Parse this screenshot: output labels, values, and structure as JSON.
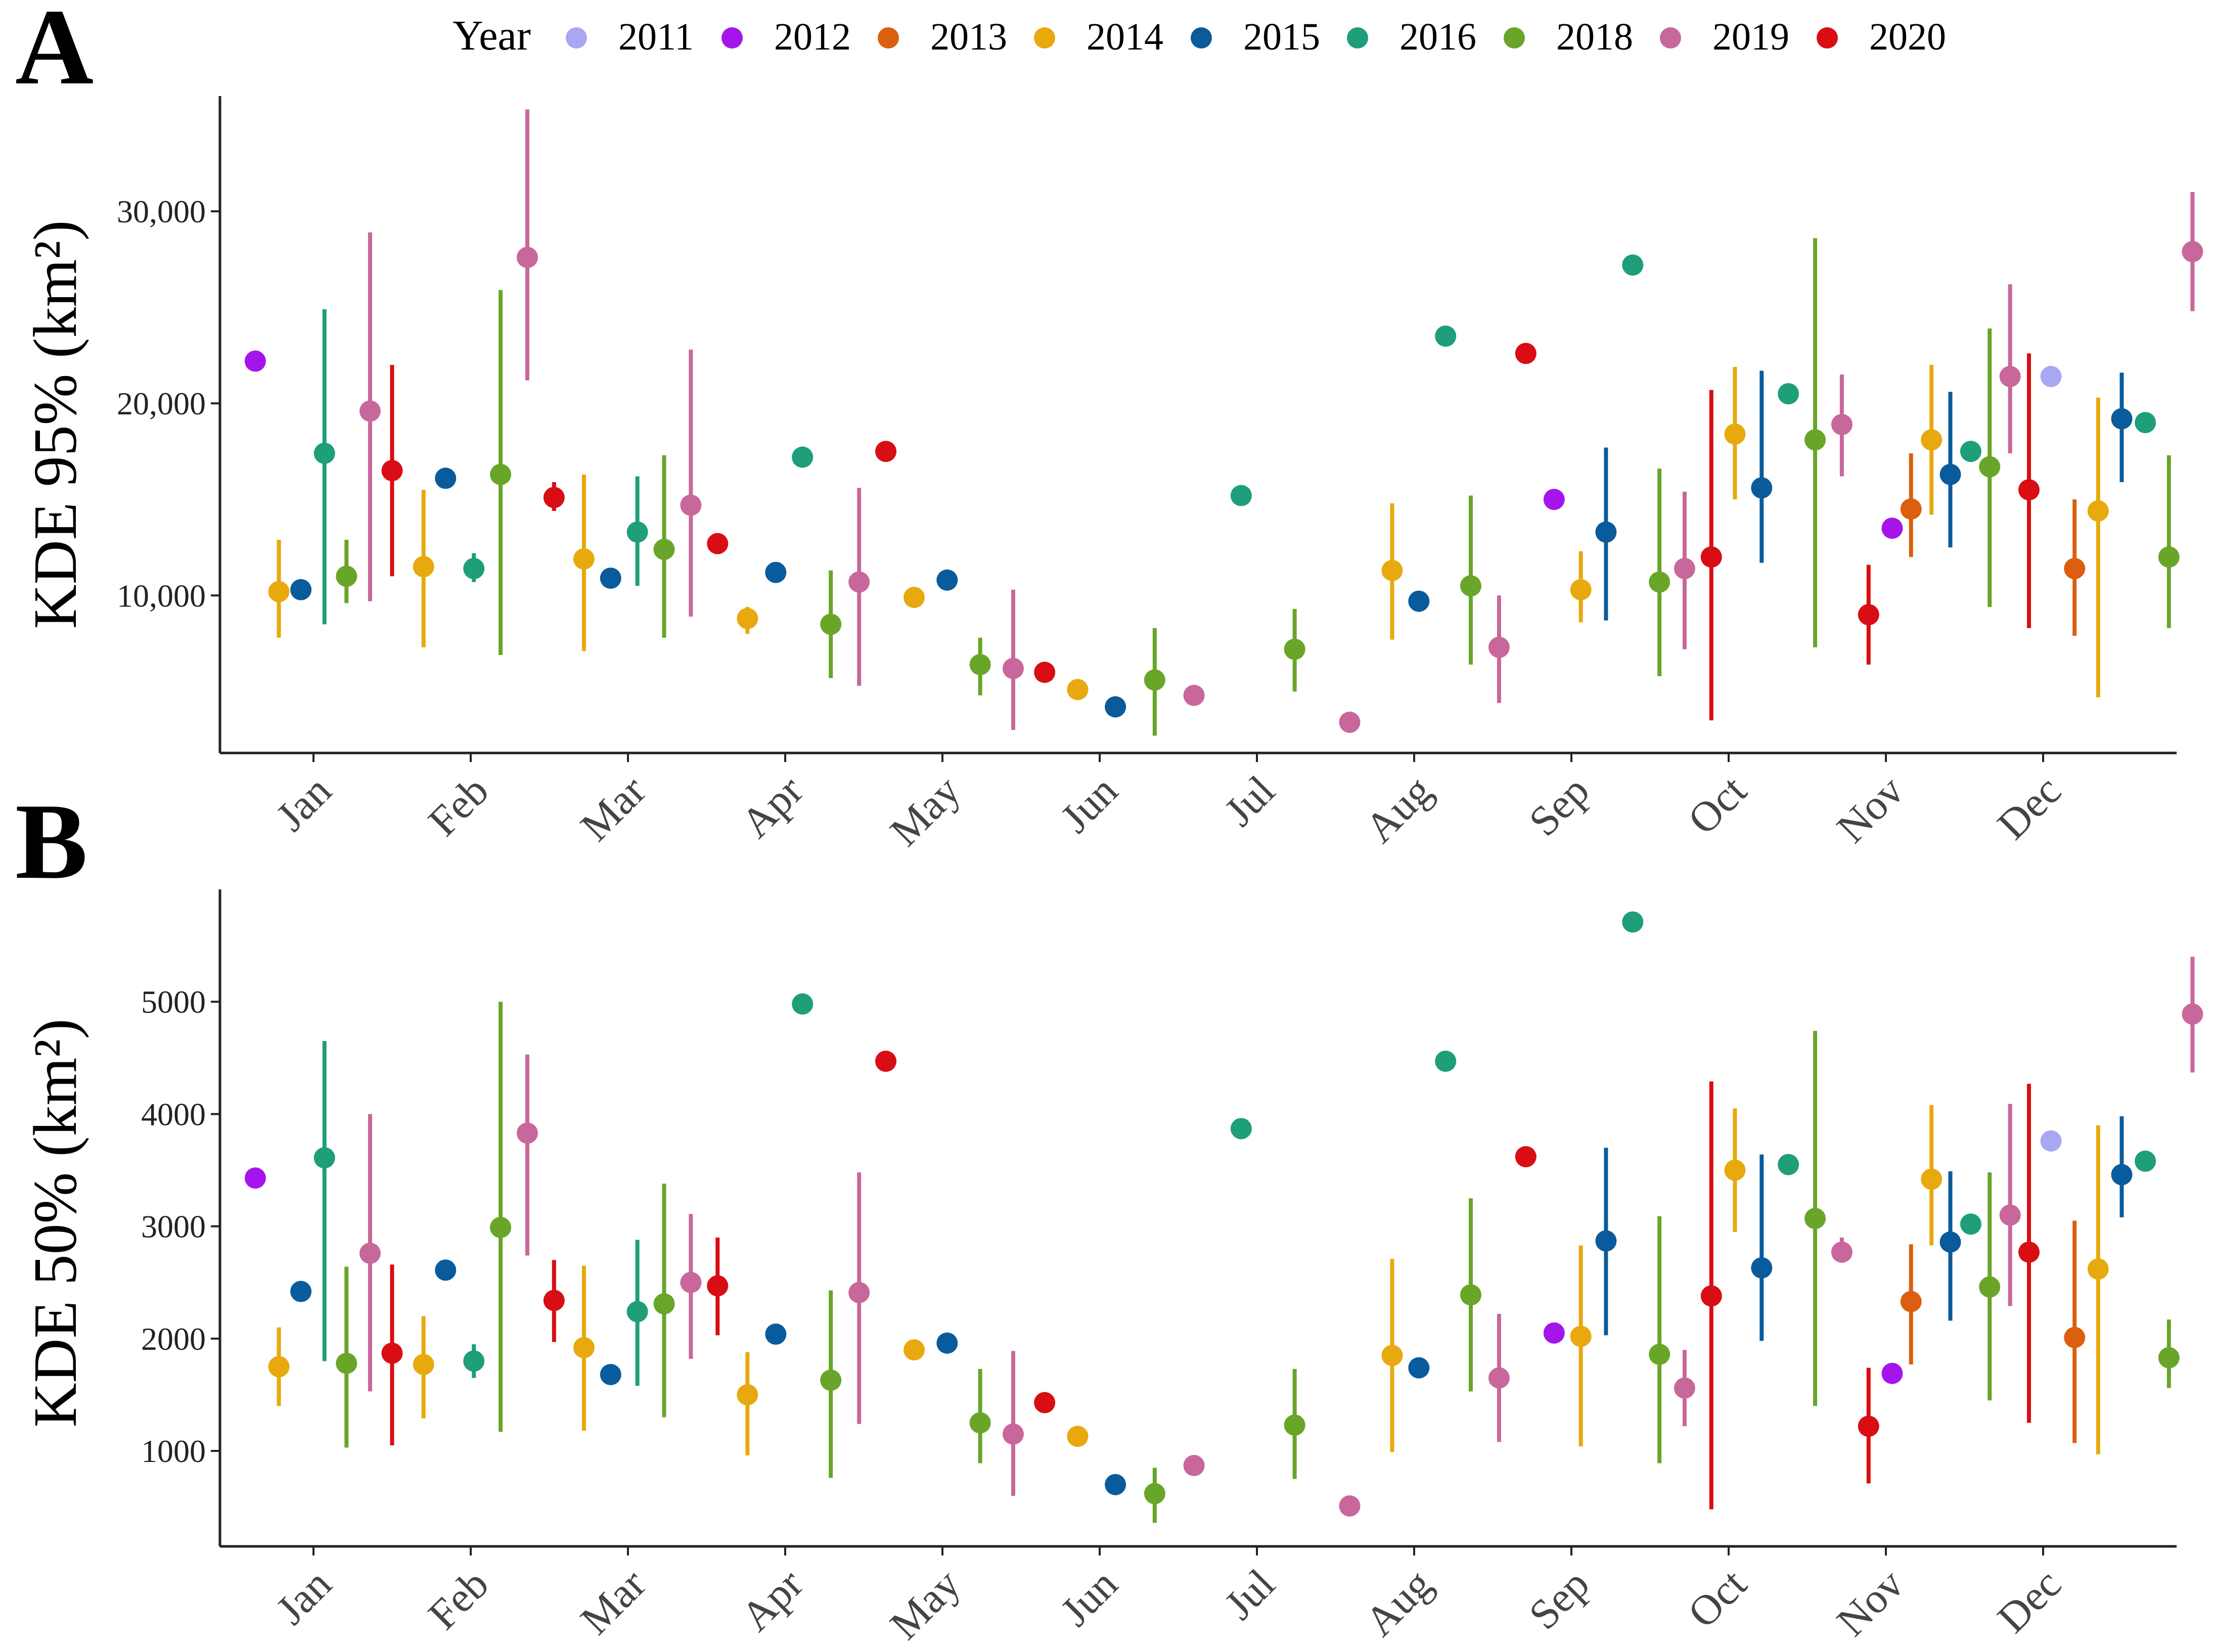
{
  "legend": {
    "title": "Year",
    "position": "top",
    "entries": [
      {
        "name": "2011",
        "color": "#A9A7F2"
      },
      {
        "name": "2012",
        "color": "#A515EB"
      },
      {
        "name": "2013",
        "color": "#DB5F0E"
      },
      {
        "name": "2014",
        "color": "#E8A90E"
      },
      {
        "name": "2015",
        "color": "#0A5B9C"
      },
      {
        "name": "2016",
        "color": "#1E9E79"
      },
      {
        "name": "2018",
        "color": "#68A529"
      },
      {
        "name": "2019",
        "color": "#C8679B"
      },
      {
        "name": "2020",
        "color": "#D80E14"
      }
    ]
  },
  "chart_data": [
    {
      "panel_label": "A",
      "type": "scatter",
      "subtype": "point-range",
      "ylabel": "KDE  95%  (km²)",
      "ylim": [
        1800,
        36000
      ],
      "yticks": [
        10000,
        20000,
        30000
      ],
      "ytick_labels": [
        "10,000",
        "20,000",
        "30,000"
      ],
      "xlim": [
        0.45,
        12.75
      ],
      "xticks": [
        1,
        2,
        3,
        4,
        5,
        6,
        7,
        8,
        9,
        10,
        11,
        12
      ],
      "xtick_labels": [
        "Jan",
        "Feb",
        "Mar",
        "Apr",
        "May",
        "Jun",
        "Jul",
        "Aug",
        "Sep",
        "Oct",
        "Nov",
        "Dec"
      ],
      "grid": false,
      "points": [
        {
          "x": 0.63,
          "year": "2012",
          "y": 22200
        },
        {
          "x": 0.78,
          "year": "2014",
          "y": 10200,
          "low": 7800,
          "high": 12900
        },
        {
          "x": 0.92,
          "year": "2015",
          "y": 10300
        },
        {
          "x": 1.07,
          "year": "2016",
          "y": 17400,
          "low": 8500,
          "high": 24900
        },
        {
          "x": 1.21,
          "year": "2018",
          "y": 11000,
          "low": 9600,
          "high": 12900
        },
        {
          "x": 1.36,
          "year": "2019",
          "y": 19600,
          "low": 9700,
          "high": 28900
        },
        {
          "x": 1.5,
          "year": "2020",
          "y": 16500,
          "low": 11000,
          "high": 22000
        },
        {
          "x": 1.7,
          "year": "2014",
          "y": 11500,
          "low": 7300,
          "high": 15500
        },
        {
          "x": 1.84,
          "year": "2015",
          "y": 16100
        },
        {
          "x": 2.02,
          "year": "2016",
          "y": 11400,
          "low": 10700,
          "high": 12200
        },
        {
          "x": 2.19,
          "year": "2018",
          "y": 16300,
          "low": 6900,
          "high": 25900
        },
        {
          "x": 2.36,
          "year": "2019",
          "y": 27600,
          "low": 21200,
          "high": 35300
        },
        {
          "x": 2.53,
          "year": "2020",
          "y": 15100,
          "low": 14400,
          "high": 15900
        },
        {
          "x": 2.72,
          "year": "2014",
          "y": 11900,
          "low": 7100,
          "high": 16300
        },
        {
          "x": 2.89,
          "year": "2015",
          "y": 10900
        },
        {
          "x": 3.06,
          "year": "2016",
          "y": 13300,
          "low": 10500,
          "high": 16200
        },
        {
          "x": 3.23,
          "year": "2018",
          "y": 12400,
          "low": 7800,
          "high": 17300
        },
        {
          "x": 3.4,
          "year": "2019",
          "y": 14700,
          "low": 8900,
          "high": 22800
        },
        {
          "x": 3.57,
          "year": "2020",
          "y": 12700
        },
        {
          "x": 3.76,
          "year": "2014",
          "y": 8800,
          "low": 8000,
          "high": 9400
        },
        {
          "x": 3.94,
          "year": "2015",
          "y": 11200
        },
        {
          "x": 4.11,
          "year": "2016",
          "y": 17200
        },
        {
          "x": 4.29,
          "year": "2018",
          "y": 8500,
          "low": 5700,
          "high": 11300
        },
        {
          "x": 4.47,
          "year": "2019",
          "y": 10700,
          "low": 5300,
          "high": 15600
        },
        {
          "x": 4.64,
          "year": "2020",
          "y": 17500
        },
        {
          "x": 4.82,
          "year": "2014",
          "y": 9900
        },
        {
          "x": 5.03,
          "year": "2015",
          "y": 10800
        },
        {
          "x": 5.24,
          "year": "2018",
          "y": 6400,
          "low": 4800,
          "high": 7800
        },
        {
          "x": 5.45,
          "year": "2019",
          "y": 6200,
          "low": 3000,
          "high": 10300
        },
        {
          "x": 5.65,
          "year": "2020",
          "y": 6000
        },
        {
          "x": 5.86,
          "year": "2014",
          "y": 5100
        },
        {
          "x": 6.1,
          "year": "2015",
          "y": 4200
        },
        {
          "x": 6.35,
          "year": "2018",
          "y": 5600,
          "low": 2700,
          "high": 8300
        },
        {
          "x": 6.6,
          "year": "2019",
          "y": 4800
        },
        {
          "x": 6.9,
          "year": "2016",
          "y": 15200
        },
        {
          "x": 7.24,
          "year": "2018",
          "y": 7200,
          "low": 5000,
          "high": 9300
        },
        {
          "x": 7.59,
          "year": "2019",
          "y": 3400
        },
        {
          "x": 7.86,
          "year": "2014",
          "y": 11300,
          "low": 7700,
          "high": 14800
        },
        {
          "x": 8.03,
          "year": "2015",
          "y": 9700
        },
        {
          "x": 8.2,
          "year": "2016",
          "y": 23500
        },
        {
          "x": 8.36,
          "year": "2018",
          "y": 10500,
          "low": 6400,
          "high": 15200
        },
        {
          "x": 8.54,
          "year": "2019",
          "y": 7300,
          "low": 4400,
          "high": 10000
        },
        {
          "x": 8.71,
          "year": "2020",
          "y": 22600
        },
        {
          "x": 8.89,
          "year": "2012",
          "y": 15000
        },
        {
          "x": 9.06,
          "year": "2014",
          "y": 10300,
          "low": 8600,
          "high": 12300
        },
        {
          "x": 9.22,
          "year": "2015",
          "y": 13300,
          "low": 8700,
          "high": 17700
        },
        {
          "x": 9.39,
          "year": "2016",
          "y": 27200
        },
        {
          "x": 9.56,
          "year": "2018",
          "y": 10700,
          "low": 5800,
          "high": 16600
        },
        {
          "x": 9.72,
          "year": "2019",
          "y": 11400,
          "low": 7200,
          "high": 15400
        },
        {
          "x": 9.89,
          "year": "2020",
          "y": 12000,
          "low": 3500,
          "high": 20700
        },
        {
          "x": 10.04,
          "year": "2014",
          "y": 18400,
          "low": 15000,
          "high": 21900
        },
        {
          "x": 10.21,
          "year": "2015",
          "y": 15600,
          "low": 11700,
          "high": 21700
        },
        {
          "x": 10.38,
          "year": "2016",
          "y": 20500
        },
        {
          "x": 10.55,
          "year": "2018",
          "y": 18100,
          "low": 7300,
          "high": 28600
        },
        {
          "x": 10.72,
          "year": "2019",
          "y": 18900,
          "low": 16200,
          "high": 21500
        },
        {
          "x": 10.89,
          "year": "2020",
          "y": 9000,
          "low": 6400,
          "high": 11600
        },
        {
          "x": 11.04,
          "year": "2012",
          "y": 13500
        },
        {
          "x": 11.16,
          "year": "2013",
          "y": 14500,
          "low": 12000,
          "high": 17400
        },
        {
          "x": 11.29,
          "year": "2014",
          "y": 18100,
          "low": 14200,
          "high": 22000
        },
        {
          "x": 11.41,
          "year": "2015",
          "y": 16300,
          "low": 12500,
          "high": 20600
        },
        {
          "x": 11.54,
          "year": "2016",
          "y": 17500
        },
        {
          "x": 11.66,
          "year": "2018",
          "y": 16700,
          "low": 9400,
          "high": 23900
        },
        {
          "x": 11.79,
          "year": "2019",
          "y": 21400,
          "low": 17400,
          "high": 26200
        },
        {
          "x": 11.91,
          "year": "2020",
          "y": 15500,
          "low": 8300,
          "high": 22600
        },
        {
          "x": 12.05,
          "year": "2011",
          "y": 21400
        },
        {
          "x": 12.2,
          "year": "2013",
          "y": 11400,
          "low": 7900,
          "high": 15000
        },
        {
          "x": 12.35,
          "year": "2014",
          "y": 14400,
          "low": 4700,
          "high": 20300
        },
        {
          "x": 12.5,
          "year": "2015",
          "y": 19200,
          "low": 15900,
          "high": 21600
        },
        {
          "x": 12.65,
          "year": "2016",
          "y": 19000
        },
        {
          "x": 12.8,
          "year": "2018",
          "y": 12000,
          "low": 8300,
          "high": 17300
        },
        {
          "x": 12.95,
          "year": "2019",
          "y": 27900,
          "low": 24800,
          "high": 31000
        }
      ]
    },
    {
      "panel_label": "B",
      "type": "scatter",
      "subtype": "point-range",
      "ylabel": "KDE  50%  (km²)",
      "ylim": [
        150,
        6000
      ],
      "yticks": [
        1000,
        2000,
        3000,
        4000,
        5000
      ],
      "ytick_labels": [
        "1000",
        "2000",
        "3000",
        "4000",
        "5000"
      ],
      "xlim": [
        0.45,
        12.75
      ],
      "xticks": [
        1,
        2,
        3,
        4,
        5,
        6,
        7,
        8,
        9,
        10,
        11,
        12
      ],
      "xtick_labels": [
        "Jan",
        "Feb",
        "Mar",
        "Apr",
        "May",
        "Jun",
        "Jul",
        "Aug",
        "Sep",
        "Oct",
        "Nov",
        "Dec"
      ],
      "grid": false,
      "points": [
        {
          "x": 0.63,
          "year": "2012",
          "y": 3430
        },
        {
          "x": 0.78,
          "year": "2014",
          "y": 1750,
          "low": 1400,
          "high": 2100
        },
        {
          "x": 0.92,
          "year": "2015",
          "y": 2420
        },
        {
          "x": 1.07,
          "year": "2016",
          "y": 3610,
          "low": 1800,
          "high": 4650
        },
        {
          "x": 1.21,
          "year": "2018",
          "y": 1780,
          "low": 1030,
          "high": 2640
        },
        {
          "x": 1.36,
          "year": "2019",
          "y": 2760,
          "low": 1530,
          "high": 4000
        },
        {
          "x": 1.5,
          "year": "2020",
          "y": 1870,
          "low": 1050,
          "high": 2660
        },
        {
          "x": 1.7,
          "year": "2014",
          "y": 1770,
          "low": 1290,
          "high": 2200
        },
        {
          "x": 1.84,
          "year": "2015",
          "y": 2610
        },
        {
          "x": 2.02,
          "year": "2016",
          "y": 1800,
          "low": 1650,
          "high": 1950
        },
        {
          "x": 2.19,
          "year": "2018",
          "y": 2990,
          "low": 1170,
          "high": 5000
        },
        {
          "x": 2.36,
          "year": "2019",
          "y": 3830,
          "low": 2740,
          "high": 4530
        },
        {
          "x": 2.53,
          "year": "2020",
          "y": 2340,
          "low": 1970,
          "high": 2700
        },
        {
          "x": 2.72,
          "year": "2014",
          "y": 1920,
          "low": 1180,
          "high": 2650
        },
        {
          "x": 2.89,
          "year": "2015",
          "y": 1680
        },
        {
          "x": 3.06,
          "year": "2016",
          "y": 2240,
          "low": 1580,
          "high": 2880
        },
        {
          "x": 3.23,
          "year": "2018",
          "y": 2310,
          "low": 1300,
          "high": 3380
        },
        {
          "x": 3.4,
          "year": "2019",
          "y": 2500,
          "low": 1820,
          "high": 3110
        },
        {
          "x": 3.57,
          "year": "2020",
          "y": 2470,
          "low": 2030,
          "high": 2900
        },
        {
          "x": 3.76,
          "year": "2014",
          "y": 1500,
          "low": 960,
          "high": 1880
        },
        {
          "x": 3.94,
          "year": "2015",
          "y": 2040
        },
        {
          "x": 4.11,
          "year": "2016",
          "y": 4980
        },
        {
          "x": 4.29,
          "year": "2018",
          "y": 1630,
          "low": 760,
          "high": 2430
        },
        {
          "x": 4.47,
          "year": "2019",
          "y": 2410,
          "low": 1240,
          "high": 3480
        },
        {
          "x": 4.64,
          "year": "2020",
          "y": 4470
        },
        {
          "x": 4.82,
          "year": "2014",
          "y": 1900
        },
        {
          "x": 5.03,
          "year": "2015",
          "y": 1960
        },
        {
          "x": 5.24,
          "year": "2018",
          "y": 1250,
          "low": 890,
          "high": 1730
        },
        {
          "x": 5.45,
          "year": "2019",
          "y": 1150,
          "low": 600,
          "high": 1890
        },
        {
          "x": 5.65,
          "year": "2020",
          "y": 1430
        },
        {
          "x": 5.86,
          "year": "2014",
          "y": 1130
        },
        {
          "x": 6.1,
          "year": "2015",
          "y": 700
        },
        {
          "x": 6.35,
          "year": "2018",
          "y": 620,
          "low": 360,
          "high": 850
        },
        {
          "x": 6.6,
          "year": "2019",
          "y": 870
        },
        {
          "x": 6.9,
          "year": "2016",
          "y": 3870
        },
        {
          "x": 7.24,
          "year": "2018",
          "y": 1230,
          "low": 750,
          "high": 1730
        },
        {
          "x": 7.59,
          "year": "2019",
          "y": 510
        },
        {
          "x": 7.86,
          "year": "2014",
          "y": 1850,
          "low": 990,
          "high": 2710
        },
        {
          "x": 8.03,
          "year": "2015",
          "y": 1740
        },
        {
          "x": 8.2,
          "year": "2016",
          "y": 4470
        },
        {
          "x": 8.36,
          "year": "2018",
          "y": 2390,
          "low": 1530,
          "high": 3250
        },
        {
          "x": 8.54,
          "year": "2019",
          "y": 1650,
          "low": 1080,
          "high": 2220
        },
        {
          "x": 8.71,
          "year": "2020",
          "y": 3620
        },
        {
          "x": 8.89,
          "year": "2012",
          "y": 2050
        },
        {
          "x": 9.06,
          "year": "2014",
          "y": 2020,
          "low": 1040,
          "high": 2830
        },
        {
          "x": 9.22,
          "year": "2015",
          "y": 2870,
          "low": 2030,
          "high": 3700
        },
        {
          "x": 9.39,
          "year": "2016",
          "y": 5710
        },
        {
          "x": 9.56,
          "year": "2018",
          "y": 1860,
          "low": 890,
          "high": 3090
        },
        {
          "x": 9.72,
          "year": "2019",
          "y": 1560,
          "low": 1220,
          "high": 1900
        },
        {
          "x": 9.89,
          "year": "2020",
          "y": 2380,
          "low": 480,
          "high": 4290
        },
        {
          "x": 10.04,
          "year": "2014",
          "y": 3500,
          "low": 2950,
          "high": 4050
        },
        {
          "x": 10.21,
          "year": "2015",
          "y": 2630,
          "low": 1980,
          "high": 3640
        },
        {
          "x": 10.38,
          "year": "2016",
          "y": 3550
        },
        {
          "x": 10.55,
          "year": "2018",
          "y": 3070,
          "low": 1400,
          "high": 4740
        },
        {
          "x": 10.72,
          "year": "2019",
          "y": 2770,
          "low": 2700,
          "high": 2900
        },
        {
          "x": 10.89,
          "year": "2020",
          "y": 1220,
          "low": 710,
          "high": 1740
        },
        {
          "x": 11.04,
          "year": "2012",
          "y": 1690
        },
        {
          "x": 11.16,
          "year": "2013",
          "y": 2330,
          "low": 1770,
          "high": 2840
        },
        {
          "x": 11.29,
          "year": "2014",
          "y": 3420,
          "low": 2830,
          "high": 4080
        },
        {
          "x": 11.41,
          "year": "2015",
          "y": 2860,
          "low": 2160,
          "high": 3490
        },
        {
          "x": 11.54,
          "year": "2016",
          "y": 3020
        },
        {
          "x": 11.66,
          "year": "2018",
          "y": 2460,
          "low": 1450,
          "high": 3480
        },
        {
          "x": 11.79,
          "year": "2019",
          "y": 3100,
          "low": 2290,
          "high": 4090
        },
        {
          "x": 11.91,
          "year": "2020",
          "y": 2770,
          "low": 1250,
          "high": 4270
        },
        {
          "x": 12.05,
          "year": "2011",
          "y": 3760
        },
        {
          "x": 12.2,
          "year": "2013",
          "y": 2010,
          "low": 1070,
          "high": 3050
        },
        {
          "x": 12.35,
          "year": "2014",
          "y": 2620,
          "low": 970,
          "high": 3900
        },
        {
          "x": 12.5,
          "year": "2015",
          "y": 3460,
          "low": 3080,
          "high": 3980
        },
        {
          "x": 12.65,
          "year": "2016",
          "y": 3580
        },
        {
          "x": 12.8,
          "year": "2018",
          "y": 1830,
          "low": 1560,
          "high": 2170
        },
        {
          "x": 12.95,
          "year": "2019",
          "y": 4890,
          "low": 4370,
          "high": 5400
        }
      ]
    }
  ]
}
